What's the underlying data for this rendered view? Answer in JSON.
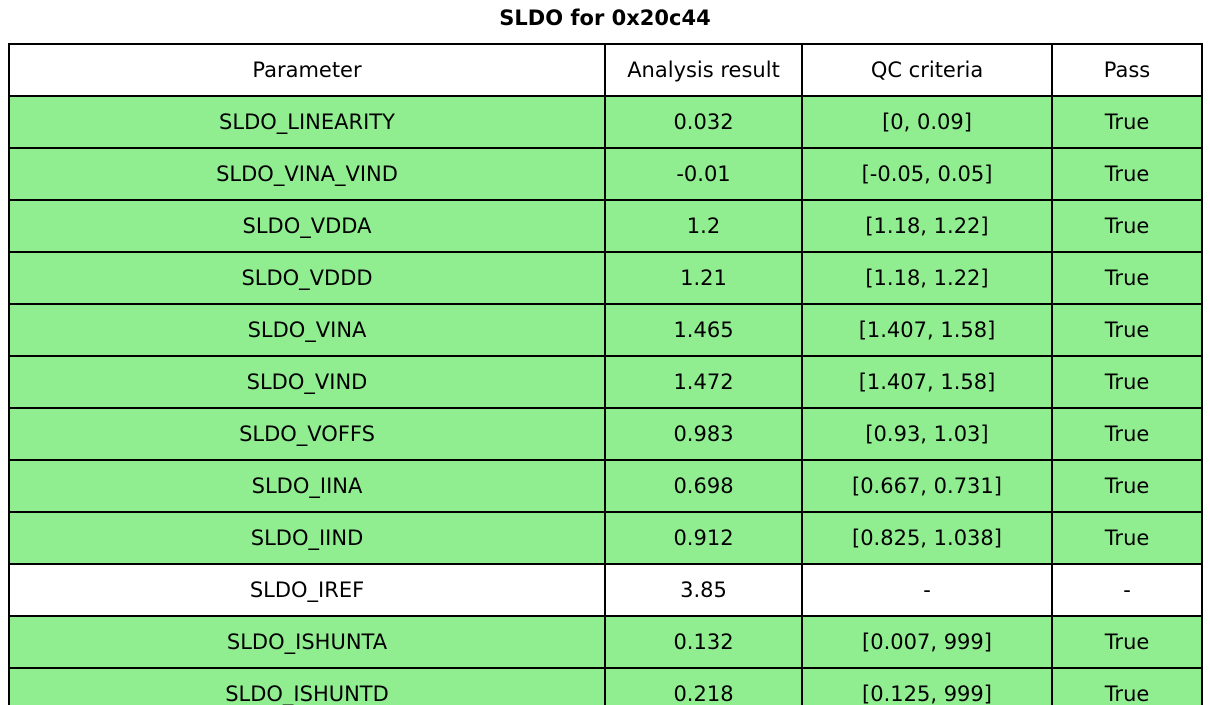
{
  "title": "SLDO for 0x20c44",
  "chart_data": {
    "type": "table",
    "title": "SLDO for 0x20c44",
    "columns": [
      "Parameter",
      "Analysis result",
      "QC criteria",
      "Pass"
    ],
    "rows": [
      {
        "parameter": "SLDO_LINEARITY",
        "analysis_result": "0.032",
        "qc_criteria": "[0, 0.09]",
        "pass": "True",
        "highlighted": true
      },
      {
        "parameter": "SLDO_VINA_VIND",
        "analysis_result": "-0.01",
        "qc_criteria": "[-0.05, 0.05]",
        "pass": "True",
        "highlighted": true
      },
      {
        "parameter": "SLDO_VDDA",
        "analysis_result": "1.2",
        "qc_criteria": "[1.18, 1.22]",
        "pass": "True",
        "highlighted": true
      },
      {
        "parameter": "SLDO_VDDD",
        "analysis_result": "1.21",
        "qc_criteria": "[1.18, 1.22]",
        "pass": "True",
        "highlighted": true
      },
      {
        "parameter": "SLDO_VINA",
        "analysis_result": "1.465",
        "qc_criteria": "[1.407, 1.58]",
        "pass": "True",
        "highlighted": true
      },
      {
        "parameter": "SLDO_VIND",
        "analysis_result": "1.472",
        "qc_criteria": "[1.407, 1.58]",
        "pass": "True",
        "highlighted": true
      },
      {
        "parameter": "SLDO_VOFFS",
        "analysis_result": "0.983",
        "qc_criteria": "[0.93, 1.03]",
        "pass": "True",
        "highlighted": true
      },
      {
        "parameter": "SLDO_IINA",
        "analysis_result": "0.698",
        "qc_criteria": "[0.667, 0.731]",
        "pass": "True",
        "highlighted": true
      },
      {
        "parameter": "SLDO_IIND",
        "analysis_result": "0.912",
        "qc_criteria": "[0.825, 1.038]",
        "pass": "True",
        "highlighted": true
      },
      {
        "parameter": "SLDO_IREF",
        "analysis_result": "3.85",
        "qc_criteria": "-",
        "pass": "-",
        "highlighted": false
      },
      {
        "parameter": "SLDO_ISHUNTA",
        "analysis_result": "0.132",
        "qc_criteria": "[0.007, 999]",
        "pass": "True",
        "highlighted": true
      },
      {
        "parameter": "SLDO_ISHUNTD",
        "analysis_result": "0.218",
        "qc_criteria": "[0.125, 999]",
        "pass": "True",
        "highlighted": true
      }
    ]
  },
  "colors": {
    "pass_row_bg": "#90EE90",
    "plain_row_bg": "#FFFFFF",
    "header_bg": "#FFFFFF",
    "border": "#000000",
    "text": "#000000"
  }
}
